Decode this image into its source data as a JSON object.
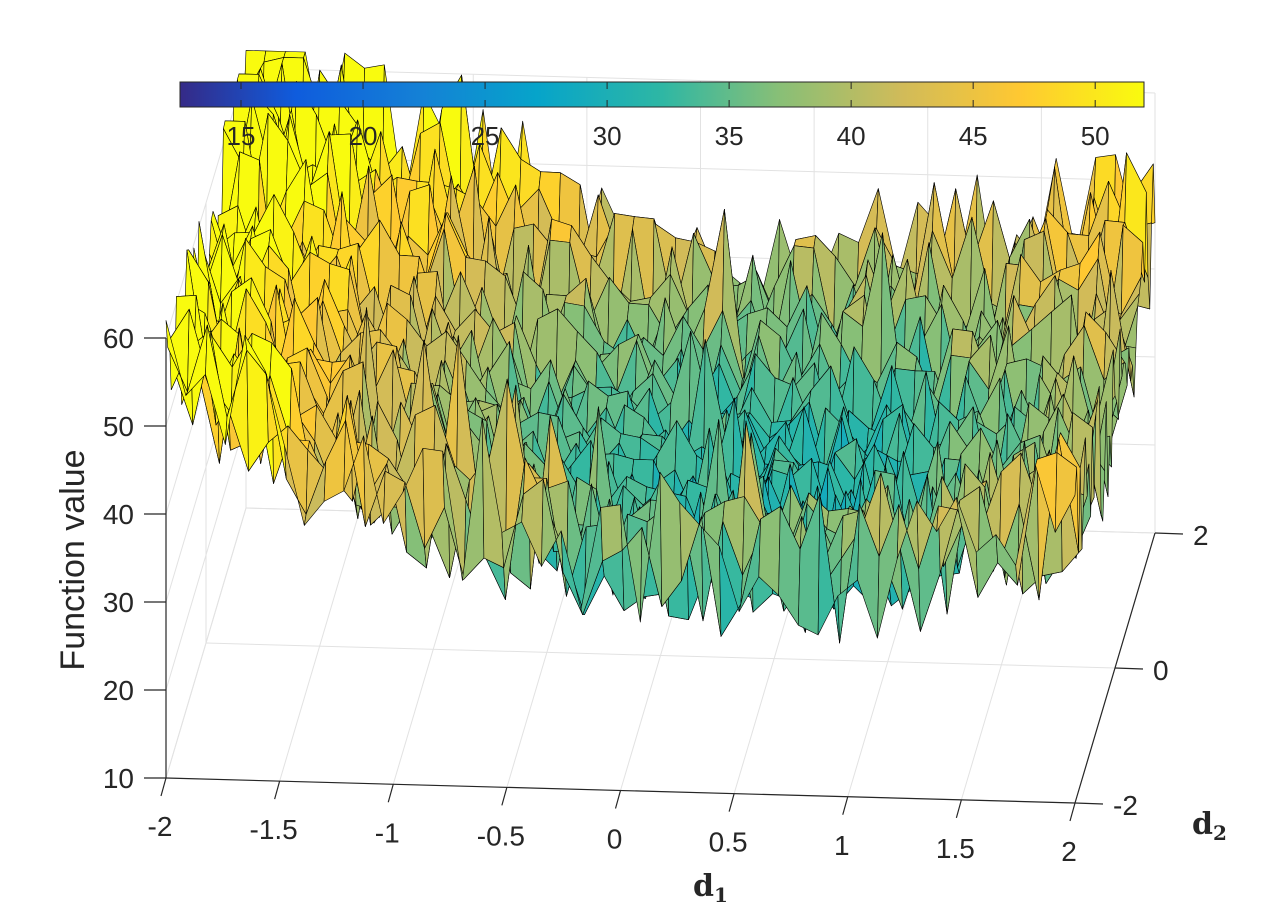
{
  "chart_data": {
    "type": "surface",
    "zlabel": "Function value",
    "x": {
      "label": "d",
      "label_sub": "1",
      "range": [
        -2,
        2
      ],
      "ticks": [
        -2,
        -1.5,
        -1,
        -0.5,
        0,
        0.5,
        1,
        1.5,
        2
      ],
      "tick_labels": [
        "-2",
        "-1.5",
        "-1",
        "-0.5",
        "0",
        "0.5",
        "1",
        "1.5",
        "2"
      ]
    },
    "y": {
      "label": "d",
      "label_sub": "2",
      "range": [
        -2,
        2
      ],
      "ticks": [
        -2,
        0,
        2
      ],
      "tick_labels": [
        "-2",
        "0",
        "2"
      ]
    },
    "z": {
      "range": [
        10,
        60
      ],
      "ticks": [
        10,
        20,
        30,
        40,
        50,
        60
      ],
      "tick_labels": [
        "10",
        "20",
        "30",
        "40",
        "50",
        "60"
      ]
    },
    "colorbar": {
      "location": "top",
      "colormap": "parula",
      "range": [
        12.5,
        52
      ],
      "ticks": [
        15,
        20,
        25,
        30,
        35,
        40,
        45,
        50
      ],
      "tick_labels": [
        "15",
        "20",
        "25",
        "30",
        "35",
        "40",
        "45",
        "50"
      ]
    },
    "surface_description": "noisy bowl, roughly 30 + 4*(d1 - 0.5)^2 + 1.5*(d2 + 0.5)^2 plus strong random noise; minimum near center-left, rising toward d1 = 2",
    "grid": true,
    "edge_color": "#000000"
  }
}
